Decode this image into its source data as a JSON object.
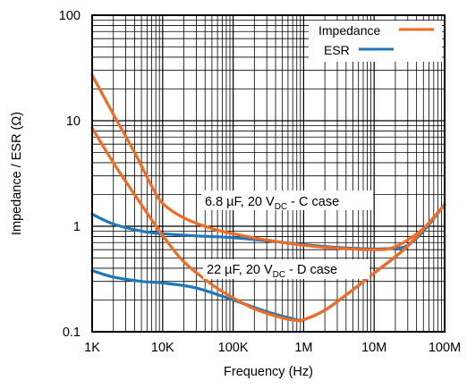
{
  "chart_data": {
    "type": "line",
    "xlabel": "Frequency (Hz)",
    "ylabel": "Impedance / ESR (Ω)",
    "xscale": "log",
    "yscale": "log",
    "xlim": [
      1000,
      100000000
    ],
    "ylim": [
      0.1,
      100
    ],
    "grid": true,
    "legend_position": "top-right",
    "x_tick_labels": [
      "1K",
      "10K",
      "100K",
      "1M",
      "10M",
      "100M"
    ],
    "y_tick_labels": [
      "0.1",
      "1",
      "10",
      "100"
    ],
    "legend": [
      {
        "label": "Impedance",
        "color": "#f26b21"
      },
      {
        "label": "ESR",
        "color": "#1f78b8"
      }
    ],
    "annotations": [
      {
        "prefix": "6.8 µF, 20 V",
        "sub": "DC",
        "suffix": " - C case"
      },
      {
        "prefix": "22 µF, 20 V",
        "sub": "DC",
        "suffix": " - D case"
      }
    ],
    "series": [
      {
        "name": "Impedance",
        "part": "6.8 µF, 20 VDC - C case",
        "color": "#f26b21",
        "x": [
          1000,
          2000,
          4000,
          7000,
          10000,
          20000,
          50000,
          100000,
          300000,
          1000000,
          3000000,
          10000000,
          20000000,
          50000000,
          100000000
        ],
        "y": [
          27,
          11.5,
          5.0,
          2.4,
          1.65,
          1.2,
          0.95,
          0.85,
          0.74,
          0.66,
          0.62,
          0.6,
          0.64,
          0.95,
          1.6
        ]
      },
      {
        "name": "ESR",
        "part": "6.8 µF, 20 VDC - C case",
        "color": "#1f78b8",
        "x": [
          1000,
          2000,
          5000,
          10000,
          30000,
          100000,
          300000,
          1000000,
          3000000,
          10000000,
          20000000,
          30000000,
          50000000,
          100000000
        ],
        "y": [
          1.3,
          1.05,
          0.9,
          0.85,
          0.81,
          0.78,
          0.73,
          0.67,
          0.63,
          0.61,
          0.62,
          0.66,
          0.9,
          1.6
        ]
      },
      {
        "name": "Impedance",
        "part": "22 µF, 20 VDC - D case",
        "color": "#f26b21",
        "x": [
          1000,
          2000,
          5000,
          10000,
          20000,
          50000,
          100000,
          200000,
          500000,
          800000,
          1000000,
          2000000,
          5000000,
          10000000,
          30000000,
          100000000
        ],
        "y": [
          8.5,
          4.0,
          1.6,
          0.82,
          0.46,
          0.28,
          0.21,
          0.165,
          0.135,
          0.128,
          0.13,
          0.16,
          0.25,
          0.36,
          0.65,
          1.6
        ]
      },
      {
        "name": "ESR",
        "part": "22 µF, 20 VDC - D case",
        "color": "#1f78b8",
        "x": [
          1000,
          2000,
          5000,
          10000,
          30000,
          100000,
          300000,
          800000,
          1000000,
          2000000,
          5000000,
          10000000,
          30000000,
          100000000
        ],
        "y": [
          0.38,
          0.33,
          0.3,
          0.29,
          0.26,
          0.2,
          0.155,
          0.13,
          0.13,
          0.16,
          0.25,
          0.36,
          0.65,
          1.6
        ]
      }
    ]
  }
}
